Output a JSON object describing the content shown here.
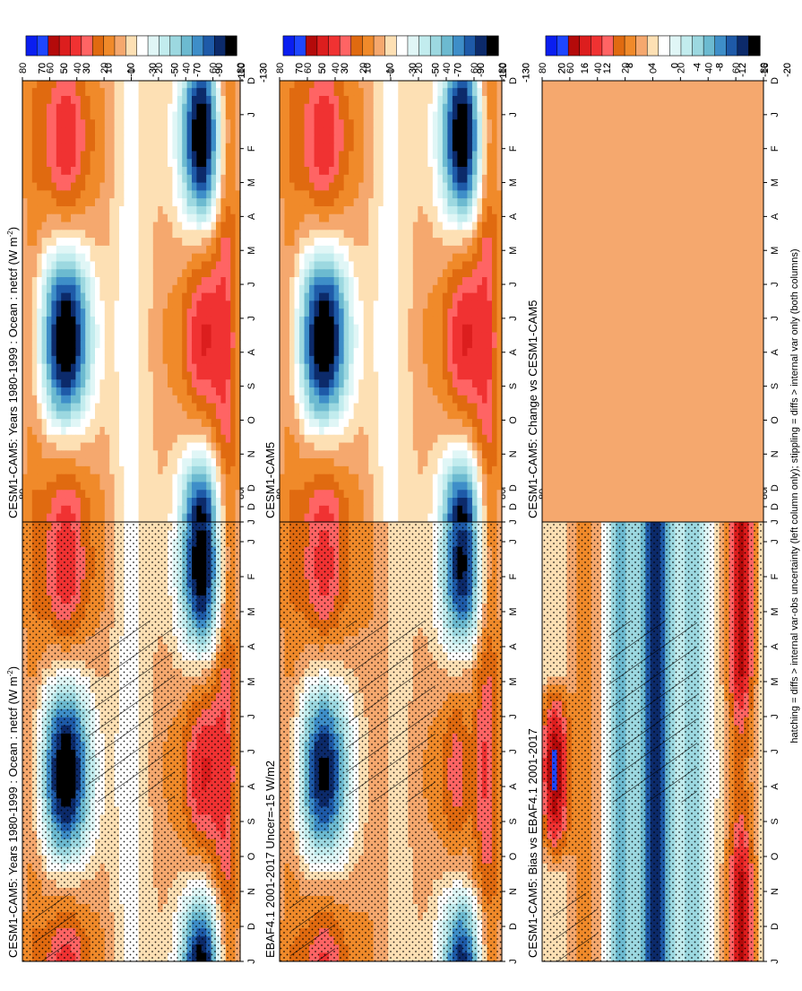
{
  "footer": "hatching = diffs > internal var-obs uncertainty (left column only); stippling = diffs > internal var only (both columns)",
  "colorbar_top": {
    "colors": [
      "#0a1ef0",
      "#1e46ff",
      "#b40a0a",
      "#dc1e1e",
      "#f03232",
      "#ff6464",
      "#e06a10",
      "#f08a2a",
      "#f5a86e",
      "#fde0b4",
      "#ffffff",
      "#e0f6f6",
      "#c2ecee",
      "#9cd8e0",
      "#6cbad0",
      "#3e8ec8",
      "#1e5aa8",
      "#0c2a6a",
      "#000000"
    ],
    "labels": [
      "70",
      "50",
      "30",
      "10",
      "-10",
      "-30",
      "-50",
      "-70",
      "-90",
      "-110",
      "-130"
    ]
  },
  "colorbar_diff": {
    "colors": [
      "#0a1ef0",
      "#1e46ff",
      "#b40a0a",
      "#dc1e1e",
      "#f03232",
      "#ff6464",
      "#e06a10",
      "#f08a2a",
      "#f5a86e",
      "#fde0b4",
      "#ffffff",
      "#e0f6f6",
      "#c2ecee",
      "#9cd8e0",
      "#6cbad0",
      "#3e8ec8",
      "#1e5aa8",
      "#0c2a6a",
      "#000000"
    ],
    "labels": [
      "20",
      "16",
      "12",
      "8",
      "4",
      "0",
      "-4",
      "-8",
      "-12",
      "-16",
      "-20"
    ]
  },
  "chart_data": [
    {
      "type": "heatmap",
      "panel": "top-left",
      "title": "CESM1-CAM5: Years 1980-1999 : Ocean : netcf (W m",
      "title_sup": "-2",
      "title_end": ")",
      "x_ticks": [
        "D",
        "J",
        "F",
        "M",
        "A",
        "M",
        "J",
        "J",
        "A",
        "S",
        "O",
        "N",
        "D",
        "J"
      ],
      "y_ticks": [
        "80",
        "60",
        "40",
        "20",
        "0",
        "20",
        "40",
        "60",
        "80"
      ],
      "y_ticks_extra": [
        {
          "value": "N",
          "lat": 40,
          "hemi": "N"
        },
        {
          "value": "S",
          "lat": -40,
          "hemi": "S"
        }
      ],
      "field": "netcf",
      "hatching": true,
      "stippling": true
    },
    {
      "type": "heatmap",
      "panel": "top-right",
      "title": "CESM1-CAM5: Years 1980-1999 : Ocean : netcf (W m",
      "title_sup": "-2",
      "title_end": ")",
      "x_ticks": [
        "D",
        "J",
        "F",
        "M",
        "A",
        "M",
        "J",
        "J",
        "A",
        "S",
        "O",
        "N",
        "D",
        "J"
      ],
      "y_ticks": [
        "80",
        "60",
        "40",
        "20",
        "0",
        "20",
        "40",
        "60",
        "80"
      ],
      "field": "netcf",
      "hatching": false,
      "stippling": false
    },
    {
      "type": "heatmap",
      "panel": "middle-left",
      "title": "EBAF4.1 2001-2017 Uncer=-15 W/m2",
      "x_ticks": [
        "D",
        "J",
        "F",
        "M",
        "A",
        "M",
        "J",
        "J",
        "A",
        "S",
        "O",
        "N",
        "D",
        "J"
      ],
      "y_ticks": [
        "80",
        "60",
        "40",
        "20",
        "0",
        "20",
        "40",
        "60",
        "80"
      ],
      "field": "obs",
      "hatching": true,
      "stippling": true
    },
    {
      "type": "heatmap",
      "panel": "middle-right",
      "title": "CESM1-CAM5",
      "x_ticks": [
        "D",
        "J",
        "F",
        "M",
        "A",
        "M",
        "J",
        "J",
        "A",
        "S",
        "O",
        "N",
        "D",
        "J"
      ],
      "y_ticks": [
        "80",
        "60",
        "40",
        "20",
        "0",
        "20",
        "40",
        "60",
        "80"
      ],
      "field": "netcf",
      "hatching": false,
      "stippling": false
    },
    {
      "type": "heatmap",
      "panel": "bottom-left",
      "title": "CESM1-CAM5: Bias vs EBAF4.1 2001-2017",
      "x_ticks": [
        "D",
        "J",
        "F",
        "M",
        "A",
        "M",
        "J",
        "J",
        "A",
        "S",
        "O",
        "N",
        "D",
        "J"
      ],
      "y_ticks": [
        "80",
        "60",
        "40",
        "20",
        "0",
        "20",
        "40",
        "60",
        "80"
      ],
      "field": "bias",
      "hatching": true,
      "stippling": true
    },
    {
      "type": "heatmap",
      "panel": "bottom-right",
      "title": "CESM1-CAM5: Change vs CESM1-CAM5",
      "x_ticks": [
        "D",
        "J",
        "F",
        "M",
        "A",
        "M",
        "J",
        "J",
        "A",
        "S",
        "O",
        "N",
        "D",
        "J"
      ],
      "y_ticks": [
        "80",
        "60",
        "40",
        "20",
        "0",
        "20",
        "40",
        "60",
        "80"
      ],
      "field": "change",
      "uniform_color": "#f5a86e",
      "hatching": false,
      "stippling": false
    }
  ]
}
